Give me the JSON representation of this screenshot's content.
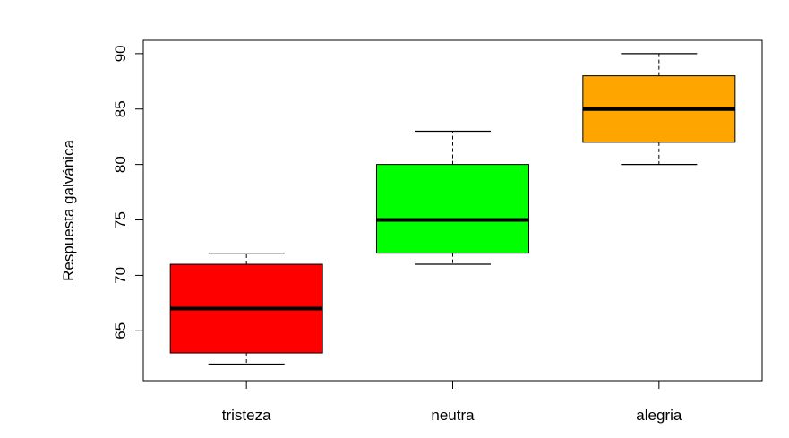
{
  "chart_data": {
    "type": "box",
    "title": "",
    "xlabel": "",
    "ylabel": "Respuesta galvánica",
    "ylim": [
      60.5,
      91.2
    ],
    "yticks": [
      65,
      70,
      75,
      80,
      85,
      90
    ],
    "grid": false,
    "legend": "none",
    "categories": [
      "tristeza",
      "neutra",
      "alegria"
    ],
    "boxes": [
      {
        "category": "tristeza",
        "color": "#ff0000",
        "min": 62,
        "q1": 63,
        "median": 67,
        "q3": 71,
        "max": 72
      },
      {
        "category": "neutra",
        "color": "#00ff00",
        "min": 71,
        "q1": 72,
        "median": 75,
        "q3": 80,
        "max": 83
      },
      {
        "category": "alegria",
        "color": "#ffa500",
        "min": 80,
        "q1": 82,
        "median": 85,
        "q3": 88,
        "max": 90
      }
    ]
  }
}
